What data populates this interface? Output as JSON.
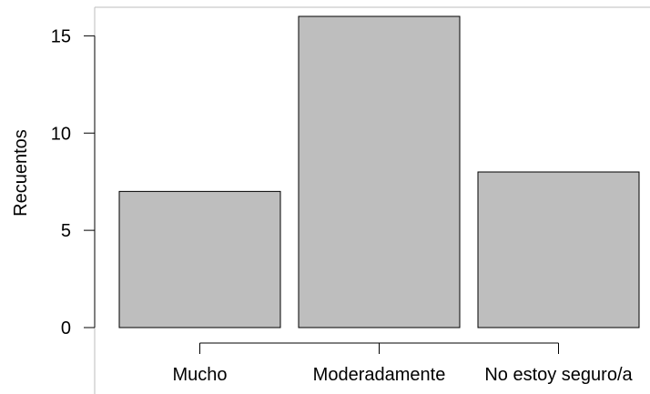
{
  "chart_data": {
    "type": "bar",
    "categories": [
      "Mucho",
      "Moderadamente",
      "No estoy seguro/a"
    ],
    "values": [
      7,
      16,
      8
    ],
    "title": "",
    "xlabel": "",
    "ylabel": "Recuentos",
    "yticks": [
      0,
      5,
      10,
      15
    ],
    "ylim": [
      0,
      16
    ],
    "grid": false,
    "colors": {
      "bar_fill": "#bebebe",
      "bar_stroke": "#000000",
      "frame": "#bdbdbd"
    }
  }
}
